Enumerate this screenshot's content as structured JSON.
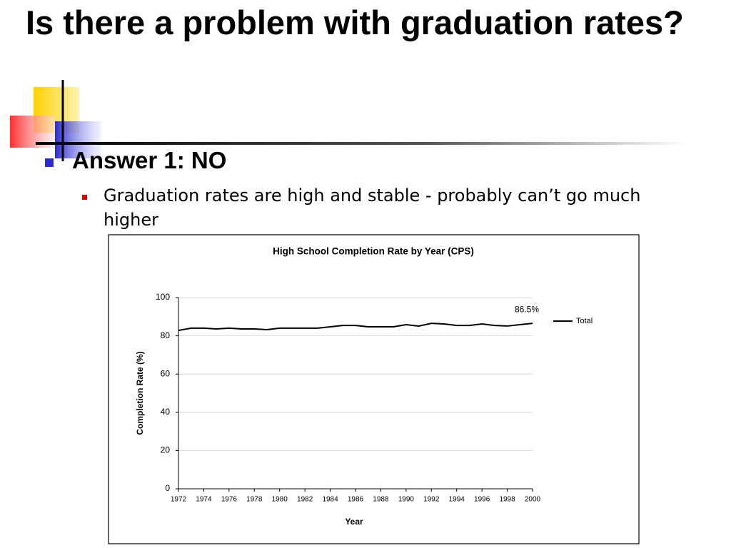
{
  "slide": {
    "title": "Is there a problem with graduation rates?",
    "bullets": [
      {
        "text": "Answer 1:  NO",
        "children": [
          {
            "text": "Graduation rates are high and stable  - probably can’t go much higher"
          }
        ]
      }
    ]
  },
  "chart_data": {
    "type": "line",
    "title": "High School Completion Rate by Year (CPS)",
    "x_label": "Year",
    "y_label": "Completion Rate (%)",
    "x": [
      1972,
      1973,
      1974,
      1975,
      1976,
      1977,
      1978,
      1979,
      1980,
      1981,
      1982,
      1983,
      1984,
      1985,
      1986,
      1987,
      1988,
      1989,
      1990,
      1991,
      1992,
      1993,
      1994,
      1995,
      1996,
      1997,
      1998,
      1999,
      2000
    ],
    "series": [
      {
        "name": "Total",
        "color": "#000000",
        "values": [
          82.8,
          84.0,
          84.0,
          83.6,
          84.0,
          83.6,
          83.6,
          83.2,
          84.0,
          84.0,
          84.0,
          84.0,
          84.7,
          85.4,
          85.4,
          84.7,
          84.7,
          84.7,
          85.8,
          85.1,
          86.5,
          86.2,
          85.4,
          85.4,
          86.2,
          85.4,
          85.1,
          85.8,
          86.5
        ],
        "value_labels": [
          null,
          null,
          null,
          null,
          null,
          null,
          null,
          null,
          null,
          null,
          null,
          null,
          null,
          null,
          null,
          null,
          null,
          null,
          null,
          null,
          null,
          null,
          null,
          null,
          null,
          null,
          null,
          null,
          "86.5%"
        ]
      }
    ],
    "xlim": [
      1972,
      2000
    ],
    "xticks": [
      1972,
      1974,
      1976,
      1978,
      1980,
      1982,
      1984,
      1986,
      1988,
      1990,
      1992,
      1994,
      1996,
      1998,
      2000
    ],
    "ylim": [
      0,
      100
    ],
    "yticks": [
      0,
      20,
      40,
      60,
      80,
      100
    ],
    "grid": true,
    "legend": "right"
  }
}
